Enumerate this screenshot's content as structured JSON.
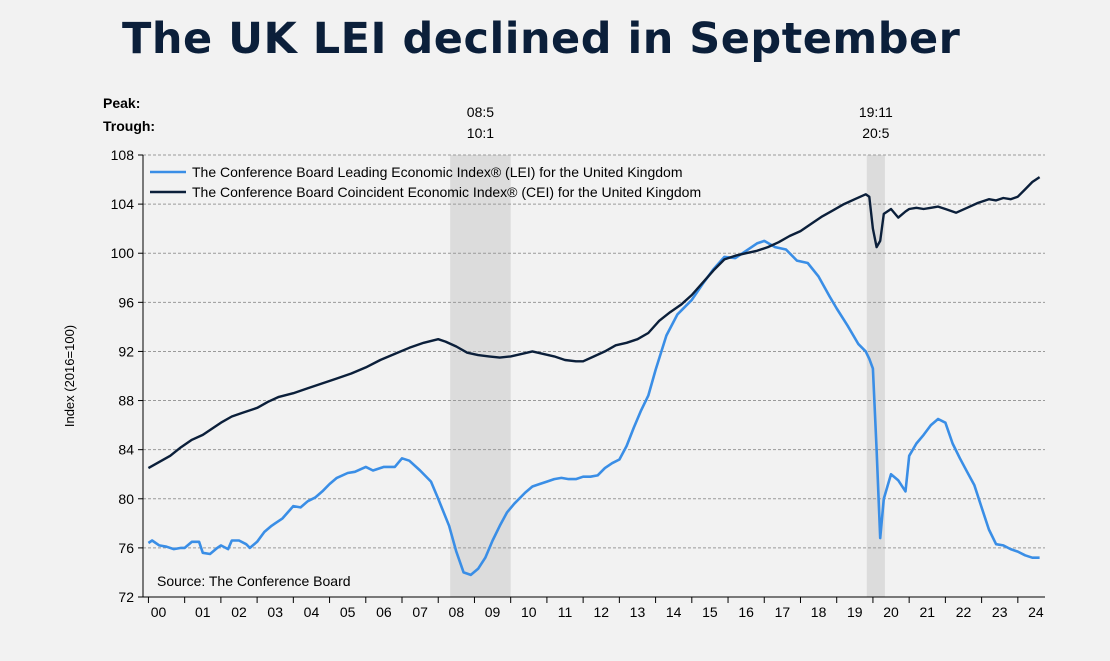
{
  "page_title": "The UK LEI declined in September",
  "chart_data": {
    "type": "line",
    "ylabel": "Index (2016=100)",
    "ylim": [
      72,
      108
    ],
    "yticks": [
      72,
      76,
      80,
      84,
      88,
      92,
      96,
      100,
      104,
      108
    ],
    "xlim": [
      1999.85,
      2024.75
    ],
    "x_tick_labels": [
      "00",
      "01",
      "02",
      "03",
      "04",
      "05",
      "06",
      "07",
      "08",
      "09",
      "10",
      "11",
      "12",
      "13",
      "14",
      "15",
      "16",
      "17",
      "18",
      "19",
      "20",
      "21",
      "22",
      "23",
      "24"
    ],
    "x_tick_years": [
      2000,
      2001,
      2002,
      2003,
      2004,
      2005,
      2006,
      2007,
      2008,
      2009,
      2010,
      2011,
      2012,
      2013,
      2014,
      2015,
      2016,
      2017,
      2018,
      2019,
      2020,
      2021,
      2022,
      2023,
      2024
    ],
    "peak_label": "Peak:",
    "trough_label": "Trough:",
    "recessions": [
      {
        "peak": "08:5",
        "trough": "10:1",
        "start": 2008.33,
        "end": 2010.0
      },
      {
        "peak": "19:11",
        "trough": "20:5",
        "start": 2019.83,
        "end": 2020.33
      }
    ],
    "source": "Source: The Conference Board",
    "grid": "horizontal dashed",
    "legend_position": "top-left",
    "series": [
      {
        "name": "The Conference Board Leading Economic Index® (LEI) for the United Kingdom",
        "color": "#3a8ee6",
        "x": [
          2000.0,
          2000.1,
          2000.3,
          2000.5,
          2000.7,
          2000.9,
          2001.0,
          2001.2,
          2001.4,
          2001.5,
          2001.7,
          2001.9,
          2002.0,
          2002.2,
          2002.3,
          2002.5,
          2002.7,
          2002.8,
          2003.0,
          2003.2,
          2003.4,
          2003.5,
          2003.7,
          2004.0,
          2004.2,
          2004.4,
          2004.6,
          2004.8,
          2005.0,
          2005.2,
          2005.5,
          2005.7,
          2006.0,
          2006.2,
          2006.5,
          2006.8,
          2007.0,
          2007.2,
          2007.5,
          2007.8,
          2008.0,
          2008.3,
          2008.5,
          2008.7,
          2008.9,
          2009.1,
          2009.3,
          2009.5,
          2009.7,
          2009.9,
          2010.1,
          2010.4,
          2010.6,
          2010.8,
          2011.0,
          2011.2,
          2011.4,
          2011.6,
          2011.8,
          2012.0,
          2012.2,
          2012.4,
          2012.6,
          2012.8,
          2013.0,
          2013.2,
          2013.4,
          2013.6,
          2013.8,
          2014.0,
          2014.3,
          2014.6,
          2014.8,
          2015.0,
          2015.3,
          2015.6,
          2015.9,
          2016.2,
          2016.5,
          2016.8,
          2017.0,
          2017.3,
          2017.6,
          2017.9,
          2018.2,
          2018.5,
          2018.8,
          2019.0,
          2019.3,
          2019.6,
          2019.8,
          2019.9,
          2020.0,
          2020.1,
          2020.2,
          2020.3,
          2020.5,
          2020.7,
          2020.9,
          2021.0,
          2021.2,
          2021.4,
          2021.6,
          2021.8,
          2022.0,
          2022.2,
          2022.4,
          2022.6,
          2022.8,
          2023.0,
          2023.2,
          2023.4,
          2023.6,
          2023.8,
          2024.0,
          2024.2,
          2024.4,
          2024.6
        ],
        "values": [
          76.4,
          76.6,
          76.2,
          76.1,
          75.9,
          76.0,
          76.0,
          76.5,
          76.5,
          75.6,
          75.5,
          76.0,
          76.2,
          75.9,
          76.6,
          76.6,
          76.3,
          76.0,
          76.5,
          77.3,
          77.8,
          78.0,
          78.4,
          79.4,
          79.3,
          79.8,
          80.1,
          80.6,
          81.2,
          81.7,
          82.1,
          82.2,
          82.6,
          82.3,
          82.6,
          82.6,
          83.3,
          83.1,
          82.3,
          81.4,
          80.0,
          77.8,
          75.7,
          74.0,
          73.8,
          74.3,
          75.2,
          76.6,
          77.8,
          78.9,
          79.6,
          80.5,
          81.0,
          81.2,
          81.4,
          81.6,
          81.7,
          81.6,
          81.6,
          81.8,
          81.8,
          81.9,
          82.5,
          82.9,
          83.2,
          84.3,
          85.8,
          87.2,
          88.4,
          90.5,
          93.3,
          95.0,
          95.6,
          96.2,
          97.5,
          98.7,
          99.7,
          99.6,
          100.2,
          100.8,
          101.0,
          100.5,
          100.3,
          99.4,
          99.2,
          98.1,
          96.5,
          95.5,
          94.1,
          92.6,
          92.0,
          91.4,
          90.6,
          84.0,
          76.8,
          80.0,
          82.0,
          81.5,
          80.6,
          83.5,
          84.5,
          85.2,
          86.0,
          86.5,
          86.2,
          84.5,
          83.3,
          82.2,
          81.1,
          79.3,
          77.5,
          76.3,
          76.2,
          75.9,
          75.7,
          75.4,
          75.2,
          75.2
        ]
      },
      {
        "name": "The Conference Board Coincident Economic Index® (CEI) for the United Kingdom",
        "color": "#0b1f3a",
        "x": [
          2000.0,
          2000.3,
          2000.6,
          2000.9,
          2001.2,
          2001.5,
          2001.8,
          2002.0,
          2002.3,
          2002.6,
          2003.0,
          2003.3,
          2003.6,
          2004.0,
          2004.4,
          2004.8,
          2005.2,
          2005.6,
          2006.0,
          2006.4,
          2006.8,
          2007.2,
          2007.6,
          2008.0,
          2008.2,
          2008.5,
          2008.8,
          2009.1,
          2009.4,
          2009.7,
          2010.0,
          2010.3,
          2010.6,
          2010.9,
          2011.2,
          2011.5,
          2011.8,
          2012.0,
          2012.3,
          2012.6,
          2012.9,
          2013.2,
          2013.5,
          2013.8,
          2014.1,
          2014.4,
          2014.7,
          2015.0,
          2015.3,
          2015.6,
          2015.9,
          2016.2,
          2016.5,
          2016.8,
          2017.1,
          2017.4,
          2017.7,
          2018.0,
          2018.3,
          2018.6,
          2018.9,
          2019.2,
          2019.5,
          2019.8,
          2019.9,
          2020.0,
          2020.1,
          2020.2,
          2020.3,
          2020.5,
          2020.7,
          2020.9,
          2021.0,
          2021.2,
          2021.4,
          2021.6,
          2021.8,
          2022.0,
          2022.3,
          2022.6,
          2022.9,
          2023.2,
          2023.4,
          2023.6,
          2023.8,
          2024.0,
          2024.2,
          2024.4,
          2024.6
        ],
        "values": [
          82.5,
          83.0,
          83.5,
          84.2,
          84.8,
          85.2,
          85.8,
          86.2,
          86.7,
          87.0,
          87.4,
          87.9,
          88.3,
          88.6,
          89.0,
          89.4,
          89.8,
          90.2,
          90.7,
          91.3,
          91.8,
          92.3,
          92.7,
          93.0,
          92.8,
          92.4,
          91.9,
          91.7,
          91.6,
          91.5,
          91.6,
          91.8,
          92.0,
          91.8,
          91.6,
          91.3,
          91.2,
          91.2,
          91.6,
          92.0,
          92.5,
          92.7,
          93.0,
          93.5,
          94.5,
          95.2,
          95.8,
          96.6,
          97.6,
          98.6,
          99.5,
          99.8,
          100.0,
          100.2,
          100.5,
          100.9,
          101.4,
          101.8,
          102.4,
          103.0,
          103.5,
          104.0,
          104.4,
          104.8,
          104.6,
          102.0,
          100.5,
          101.0,
          103.2,
          103.6,
          102.9,
          103.4,
          103.6,
          103.7,
          103.6,
          103.7,
          103.8,
          103.6,
          103.3,
          103.7,
          104.1,
          104.4,
          104.3,
          104.5,
          104.4,
          104.6,
          105.2,
          105.8,
          106.2
        ]
      }
    ]
  }
}
